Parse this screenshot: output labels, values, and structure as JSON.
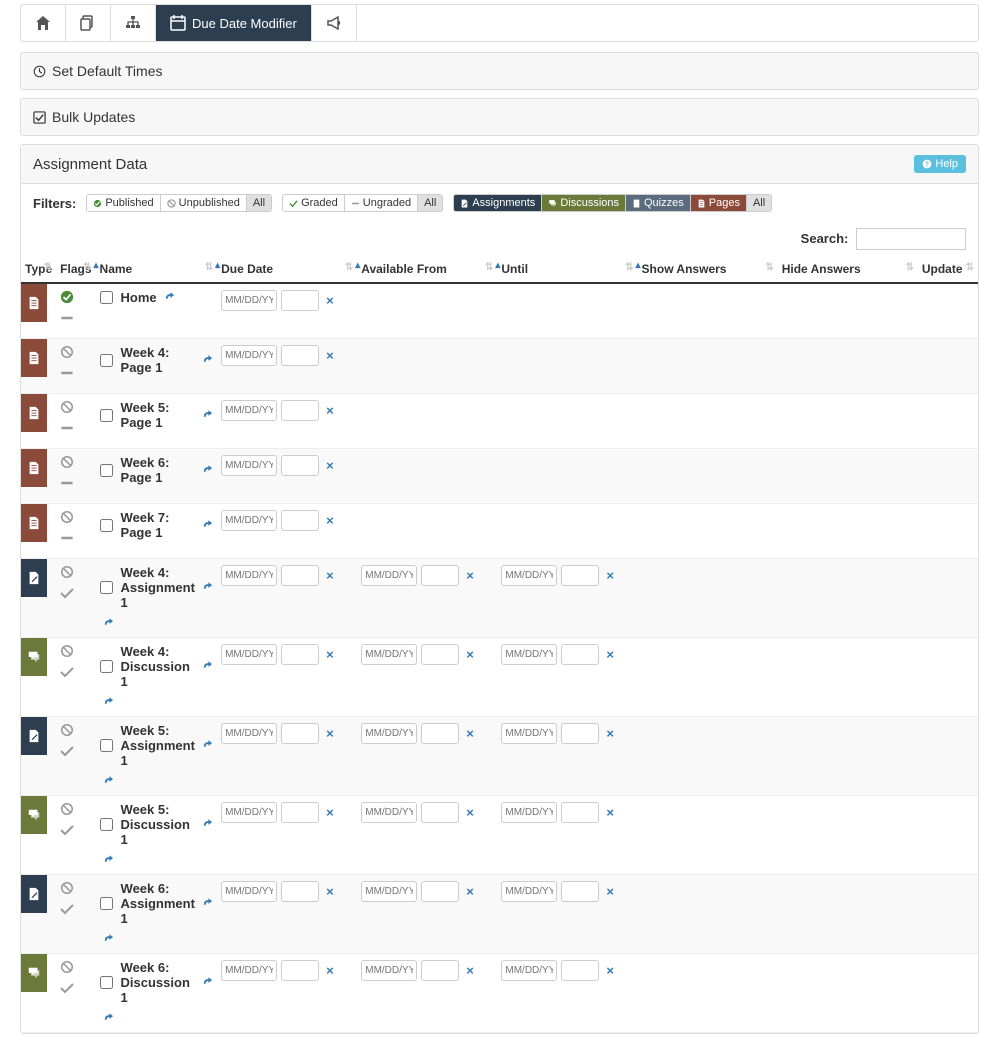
{
  "topnav": {
    "active_label": "Due Date Modifier"
  },
  "panels": {
    "default_times": "Set Default Times",
    "bulk_updates": "Bulk Updates"
  },
  "data_header": {
    "title": "Assignment Data",
    "help": "Help"
  },
  "filters": {
    "label": "Filters:",
    "published": "Published",
    "unpublished": "Unpublished",
    "all1": "All",
    "graded": "Graded",
    "ungraded": "Ungraded",
    "all2": "All",
    "assignments": "Assignments",
    "discussions": "Discussions",
    "quizzes": "Quizzes",
    "pages": "Pages",
    "all3": "All"
  },
  "search": {
    "label": "Search:"
  },
  "columns": {
    "type": "Type",
    "flags": "Flags",
    "name": "Name",
    "due": "Due Date",
    "avail": "Available From",
    "until": "Until",
    "show": "Show Answers",
    "hide": "Hide Answers",
    "update": "Update"
  },
  "placeholder": "MM/DD/YY",
  "rows": [
    {
      "type": "page",
      "published": true,
      "name": "Home",
      "dates": 1,
      "alt": false
    },
    {
      "type": "page",
      "published": false,
      "name": "Week 4: Page 1",
      "dates": 1,
      "alt": true
    },
    {
      "type": "page",
      "published": false,
      "name": "Week 5: Page 1",
      "dates": 1,
      "alt": false
    },
    {
      "type": "page",
      "published": false,
      "name": "Week 6: Page 1",
      "dates": 1,
      "alt": true
    },
    {
      "type": "page",
      "published": false,
      "name": "Week 7: Page 1",
      "dates": 1,
      "alt": false
    },
    {
      "type": "assign",
      "published": false,
      "name": "Week 4: Assignment 1",
      "dates": 3,
      "alt": true,
      "graded": true
    },
    {
      "type": "discuss",
      "published": false,
      "name": "Week 4: Discussion 1",
      "dates": 3,
      "alt": false,
      "graded": true
    },
    {
      "type": "assign",
      "published": false,
      "name": "Week 5: Assignment 1",
      "dates": 3,
      "alt": true,
      "graded": true
    },
    {
      "type": "discuss",
      "published": false,
      "name": "Week 5: Discussion 1",
      "dates": 3,
      "alt": false,
      "graded": true
    },
    {
      "type": "assign",
      "published": false,
      "name": "Week 6: Assignment 1",
      "dates": 3,
      "alt": true,
      "graded": true
    },
    {
      "type": "discuss",
      "published": false,
      "name": "Week 6: Discussion 1",
      "dates": 3,
      "alt": false,
      "graded": true
    }
  ],
  "colors": {
    "page": "#8b4a3a",
    "assign": "#2c3e50",
    "discuss": "#6b7a3a",
    "quiz": "#5a6c7d",
    "help": "#5bc0de",
    "link": "#337ab7"
  }
}
